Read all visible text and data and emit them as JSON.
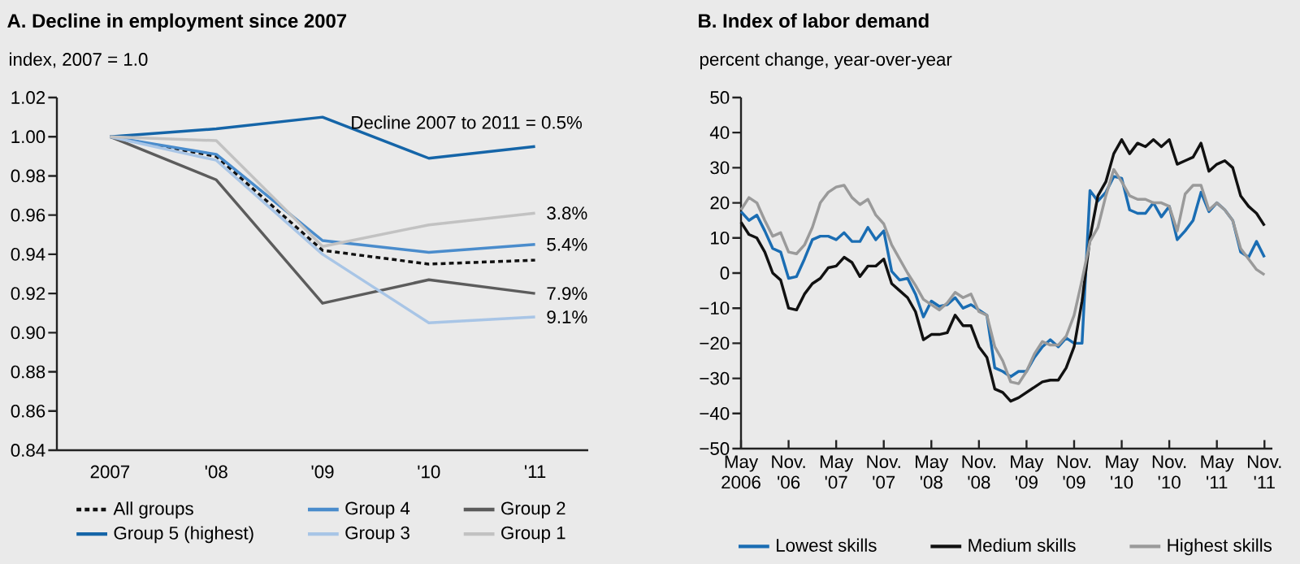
{
  "chart_data": [
    {
      "type": "line",
      "title": "A. Decline in employment since 2007",
      "ylabel": "index, 2007 = 1.0",
      "categories": [
        "2007",
        "'08",
        "'09",
        "'10",
        "'11"
      ],
      "series": [
        {
          "name": "All groups",
          "color": "#111111",
          "line_style": "dashed",
          "values": [
            1.0,
            0.99,
            0.942,
            0.935,
            0.937
          ]
        },
        {
          "name": "Group 4",
          "color": "#4a8ccc",
          "values": [
            1.0,
            0.991,
            0.947,
            0.941,
            0.945
          ]
        },
        {
          "name": "Group 2",
          "color": "#5c5c5c",
          "values": [
            1.0,
            0.978,
            0.915,
            0.927,
            0.92
          ]
        },
        {
          "name": "Group 5 (highest)",
          "color": "#1565a8",
          "values": [
            1.0,
            1.004,
            1.01,
            0.989,
            0.995
          ]
        },
        {
          "name": "Group 3",
          "color": "#a8c5e6",
          "values": [
            1.0,
            0.988,
            0.94,
            0.905,
            0.908
          ]
        },
        {
          "name": "Group 1",
          "color": "#c2c2c2",
          "values": [
            1.0,
            0.998,
            0.944,
            0.955,
            0.961
          ]
        }
      ],
      "ylim": [
        0.84,
        1.02
      ],
      "yticks": [
        {
          "value": 0.84,
          "label": "0.84"
        },
        {
          "value": 0.86,
          "label": "0.86"
        },
        {
          "value": 0.88,
          "label": "0.88"
        },
        {
          "value": 0.9,
          "label": "0.90"
        },
        {
          "value": 0.92,
          "label": "0.92"
        },
        {
          "value": 0.94,
          "label": "0.94"
        },
        {
          "value": 0.96,
          "label": "0.96"
        },
        {
          "value": 0.98,
          "label": "0.98"
        },
        {
          "value": 1.0,
          "label": "1.00"
        },
        {
          "value": 1.02,
          "label": "1.02"
        }
      ],
      "annotations": [
        "Decline 2007 to 2011 = 0.5%",
        {
          "text": "3.8%",
          "x": "'11",
          "y": 0.961
        },
        {
          "text": "5.4%",
          "x": "'11",
          "y": 0.945
        },
        {
          "text": "7.9%",
          "x": "'11",
          "y": 0.92
        },
        {
          "text": "9.1%",
          "x": "'11",
          "y": 0.908
        }
      ],
      "legend": "bottom",
      "grid": false,
      "marker": "none"
    },
    {
      "type": "line",
      "title": "B. Index of labor demand",
      "ylabel": "percent change, year-over-year",
      "x": [
        "2006-05",
        "2006-06",
        "2006-07",
        "2006-08",
        "2006-09",
        "2006-10",
        "2006-11",
        "2006-12",
        "2007-01",
        "2007-02",
        "2007-03",
        "2007-04",
        "2007-05",
        "2007-06",
        "2007-07",
        "2007-08",
        "2007-09",
        "2007-10",
        "2007-11",
        "2007-12",
        "2008-01",
        "2008-02",
        "2008-03",
        "2008-04",
        "2008-05",
        "2008-06",
        "2008-07",
        "2008-08",
        "2008-09",
        "2008-10",
        "2008-11",
        "2008-12",
        "2009-01",
        "2009-02",
        "2009-03",
        "2009-04",
        "2009-05",
        "2009-06",
        "2009-07",
        "2009-08",
        "2009-09",
        "2009-10",
        "2009-11",
        "2009-12",
        "2010-01",
        "2010-02",
        "2010-03",
        "2010-04",
        "2010-05",
        "2010-06",
        "2010-07",
        "2010-08",
        "2010-09",
        "2010-10",
        "2010-11",
        "2010-12",
        "2011-01",
        "2011-02",
        "2011-03",
        "2011-04",
        "2011-05",
        "2011-06",
        "2011-07",
        "2011-08",
        "2011-09",
        "2011-10",
        "2011-11"
      ],
      "series": [
        {
          "name": "Lowest skills",
          "color": "#1a6db3",
          "values": [
            17.5,
            15,
            16.5,
            12,
            7,
            6,
            -1.5,
            -1,
            4,
            9.5,
            10.5,
            10.5,
            9.5,
            11.5,
            9,
            9,
            13,
            9.5,
            12,
            0.5,
            -2,
            -1.5,
            -6,
            -12.5,
            -8,
            -9.5,
            -9,
            -7,
            -10,
            -9,
            -10.5,
            -12,
            -27,
            -28,
            -29.5,
            -28,
            -28,
            -24,
            -21,
            -19,
            -21,
            -18.5,
            -20,
            -20,
            23.5,
            20.5,
            23,
            27.5,
            27,
            18,
            17,
            17,
            20,
            16,
            19,
            9.5,
            12,
            15,
            23,
            17.5,
            20,
            18,
            15,
            6,
            4.5,
            9,
            4.5
          ]
        },
        {
          "name": "Medium skills",
          "color": "#111111",
          "values": [
            14.5,
            11,
            10,
            6,
            0,
            -2,
            -10,
            -10.5,
            -6,
            -3,
            -1.5,
            1.5,
            2,
            4.5,
            3,
            -1,
            2,
            2,
            4,
            -3,
            -5,
            -7,
            -11,
            -19,
            -17.5,
            -17.5,
            -17,
            -12,
            -15,
            -15,
            -21,
            -24,
            -33,
            -34,
            -36.5,
            -35.5,
            -34,
            -32.5,
            -31,
            -30.5,
            -30.5,
            -27,
            -21,
            -8,
            10,
            22,
            26,
            34,
            38,
            34,
            37,
            36,
            38,
            36,
            38,
            31,
            32,
            33,
            37,
            29,
            31,
            32,
            30,
            22,
            19,
            17,
            13.5
          ]
        },
        {
          "name": "Highest skills",
          "color": "#9a9a9a",
          "values": [
            18,
            21.5,
            20,
            15,
            10.5,
            11.5,
            6,
            5.5,
            8,
            13,
            20,
            23,
            24.5,
            25,
            21.5,
            19.5,
            21,
            16.5,
            14,
            8,
            4,
            0,
            -3.5,
            -7.5,
            -9,
            -10.5,
            -8.5,
            -5.5,
            -7,
            -6,
            -11,
            -12,
            -21,
            -25,
            -31,
            -31.5,
            -28,
            -23,
            -19.5,
            -20.5,
            -20.5,
            -18,
            -12,
            -2,
            9,
            13,
            22,
            29.5,
            26,
            22,
            21,
            21,
            20,
            20,
            19,
            12,
            22.5,
            25,
            25,
            18,
            20,
            18,
            15,
            7,
            4,
            1,
            -0.5
          ]
        }
      ],
      "xlim": [
        "2006-05",
        "2011-12"
      ],
      "xticks": [
        {
          "value": "2006-05",
          "label": "May 2006"
        },
        {
          "value": "2006-11",
          "label": "Nov. '06"
        },
        {
          "value": "2007-05",
          "label": "May '07"
        },
        {
          "value": "2007-11",
          "label": "Nov. '07"
        },
        {
          "value": "2008-05",
          "label": "May '08"
        },
        {
          "value": "2008-11",
          "label": "Nov. '08"
        },
        {
          "value": "2009-05",
          "label": "May '09"
        },
        {
          "value": "2009-11",
          "label": "Nov. '09"
        },
        {
          "value": "2010-05",
          "label": "May '10"
        },
        {
          "value": "2010-11",
          "label": "Nov. '10"
        },
        {
          "value": "2011-05",
          "label": "May '11"
        },
        {
          "value": "2011-11",
          "label": "Nov. '11"
        }
      ],
      "ylim": [
        -50,
        50
      ],
      "yticks": [
        {
          "value": -50,
          "label": "−50"
        },
        {
          "value": -40,
          "label": "−40"
        },
        {
          "value": -30,
          "label": "−30"
        },
        {
          "value": -20,
          "label": "−20"
        },
        {
          "value": -10,
          "label": "−10"
        },
        0,
        10,
        20,
        30,
        40,
        50
      ],
      "legend": "bottom",
      "grid": false,
      "marker": "none"
    }
  ]
}
